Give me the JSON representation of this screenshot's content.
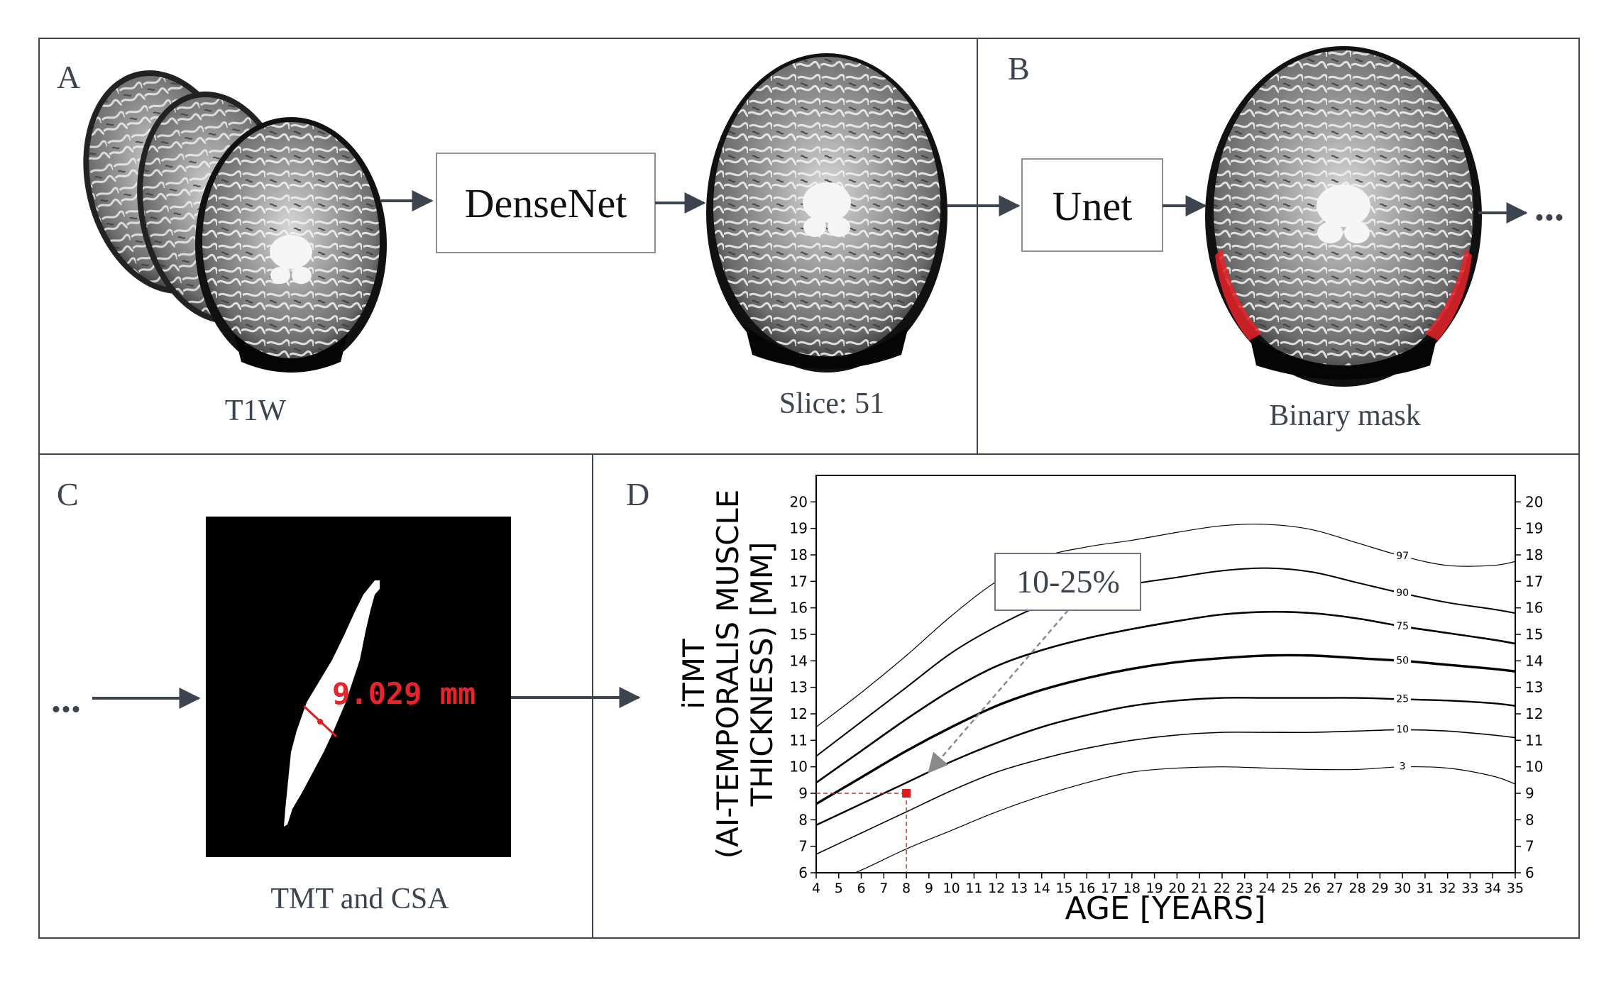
{
  "figure": {
    "panels": [
      {
        "letter": "A"
      },
      {
        "letter": "B"
      },
      {
        "letter": "C"
      },
      {
        "letter": "D"
      }
    ],
    "panel_a": {
      "input_caption": "T1W",
      "model_label": "DenseNet",
      "output_caption": "Slice: 51"
    },
    "panel_b": {
      "model_label": "Unet",
      "output_caption": "Binary mask",
      "continuation": "..."
    },
    "panel_c": {
      "continuation": "...",
      "measurement": "9.029 mm",
      "caption": "TMT and CSA"
    },
    "colors": {
      "frame": "#3d4450",
      "arrow": "#3d4450",
      "mask_red": "#e8232a",
      "marker_red": "#e01b1b",
      "annotation_arrow": "#8a8a8a"
    }
  },
  "chart_data": {
    "type": "line",
    "xlabel": "AGE [YEARS]",
    "ylabel_line1": "iTMT",
    "ylabel_line2": "(AI-TEMPORALIS MUSCLE",
    "ylabel_line3": "THICKNESS) [MM]",
    "xlim": [
      4,
      35
    ],
    "ylim": [
      6,
      21
    ],
    "xticks": [
      "4",
      "5",
      "6",
      "7",
      "8",
      "9",
      "10",
      "11",
      "12",
      "13",
      "14",
      "15",
      "16",
      "17",
      "18",
      "19",
      "20",
      "21",
      "22",
      "23",
      "24",
      "25",
      "26",
      "27",
      "28",
      "29",
      "30",
      "31",
      "32",
      "33",
      "34",
      "35"
    ],
    "yticks": [
      "6",
      "7",
      "8",
      "9",
      "10",
      "11",
      "12",
      "13",
      "14",
      "15",
      "16",
      "17",
      "18",
      "19",
      "20"
    ],
    "series": [
      {
        "name": "3",
        "x": [
          4,
          6,
          8,
          10,
          12,
          14,
          16,
          18,
          20,
          22,
          24,
          26,
          28,
          30,
          32,
          34,
          35
        ],
        "y": [
          5.4,
          6.1,
          6.9,
          7.6,
          8.3,
          8.9,
          9.4,
          9.8,
          9.95,
          10.0,
          9.95,
          9.9,
          9.9,
          10.0,
          9.95,
          9.65,
          9.35
        ]
      },
      {
        "name": "10",
        "x": [
          4,
          6,
          8,
          10,
          12,
          14,
          16,
          18,
          20,
          22,
          24,
          26,
          28,
          30,
          32,
          34,
          35
        ],
        "y": [
          6.7,
          7.5,
          8.3,
          9.1,
          9.8,
          10.3,
          10.7,
          11.0,
          11.2,
          11.3,
          11.3,
          11.3,
          11.35,
          11.4,
          11.35,
          11.2,
          11.1
        ]
      },
      {
        "name": "25",
        "x": [
          4,
          6,
          8,
          10,
          12,
          14,
          16,
          18,
          20,
          22,
          24,
          26,
          28,
          30,
          32,
          34,
          35
        ],
        "y": [
          7.8,
          8.6,
          9.4,
          10.2,
          10.9,
          11.5,
          11.95,
          12.3,
          12.5,
          12.6,
          12.6,
          12.6,
          12.6,
          12.55,
          12.5,
          12.4,
          12.3
        ]
      },
      {
        "name": "50",
        "x": [
          4,
          6,
          8,
          10,
          12,
          14,
          16,
          18,
          20,
          22,
          24,
          26,
          28,
          30,
          32,
          34,
          35
        ],
        "y": [
          8.6,
          9.6,
          10.6,
          11.5,
          12.3,
          12.9,
          13.35,
          13.7,
          13.95,
          14.1,
          14.2,
          14.2,
          14.1,
          14.0,
          13.85,
          13.7,
          13.6
        ]
      },
      {
        "name": "75",
        "x": [
          4,
          6,
          8,
          10,
          12,
          14,
          16,
          18,
          20,
          22,
          24,
          26,
          28,
          30,
          32,
          34,
          35
        ],
        "y": [
          9.4,
          10.6,
          11.8,
          12.9,
          13.8,
          14.4,
          14.85,
          15.2,
          15.5,
          15.75,
          15.85,
          15.8,
          15.6,
          15.3,
          15.05,
          14.8,
          14.65
        ]
      },
      {
        "name": "90",
        "x": [
          4,
          6,
          8,
          10,
          12,
          14,
          16,
          18,
          20,
          22,
          24,
          26,
          28,
          30,
          32,
          34,
          35
        ],
        "y": [
          10.4,
          11.7,
          13.0,
          14.3,
          15.3,
          16.1,
          16.6,
          16.9,
          17.15,
          17.4,
          17.5,
          17.35,
          16.95,
          16.55,
          16.2,
          15.95,
          15.8
        ]
      },
      {
        "name": "97",
        "x": [
          4,
          6,
          8,
          10,
          12,
          14,
          16,
          18,
          20,
          22,
          24,
          26,
          28,
          30,
          32,
          34,
          35
        ],
        "y": [
          11.5,
          12.8,
          14.2,
          15.7,
          17.0,
          17.9,
          18.3,
          18.55,
          18.85,
          19.1,
          19.15,
          18.95,
          18.45,
          17.95,
          17.6,
          17.6,
          17.75
        ]
      }
    ],
    "marker": {
      "x": 8,
      "y": 9
    },
    "annotation": {
      "text": "10-25%",
      "arrow_to": {
        "x": 9,
        "y": 9.8
      }
    }
  }
}
